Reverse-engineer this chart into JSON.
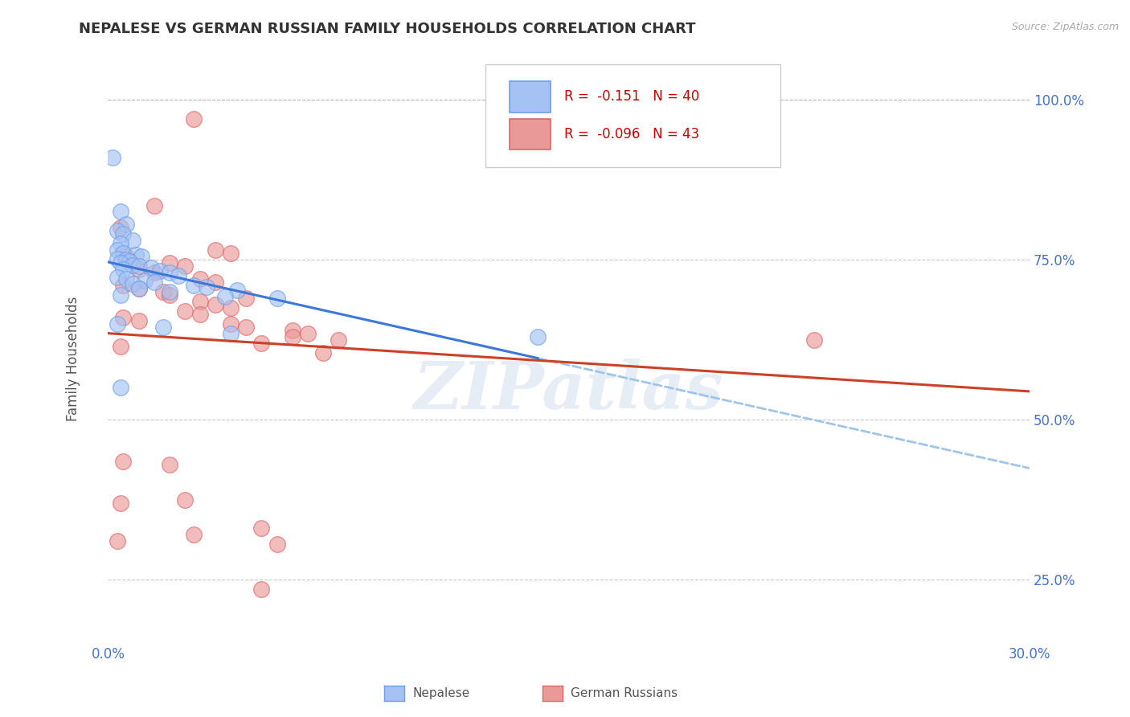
{
  "title": "NEPALESE VS GERMAN RUSSIAN FAMILY HOUSEHOLDS CORRELATION CHART",
  "source_text": "Source: ZipAtlas.com",
  "ylabel": "Family Households",
  "watermark": "ZIPatlas",
  "legend": {
    "blue_r": -0.151,
    "blue_n": 40,
    "pink_r": -0.096,
    "pink_n": 43,
    "blue_label": "Nepalese",
    "pink_label": "German Russians"
  },
  "xlim": [
    0.0,
    30.0
  ],
  "ylim": [
    15.0,
    107.0
  ],
  "yticks": [
    25.0,
    50.0,
    75.0,
    100.0
  ],
  "ytick_labels": [
    "25.0%",
    "50.0%",
    "75.0%",
    "100.0%"
  ],
  "title_color": "#333333",
  "title_fontsize": 13,
  "blue_color": "#a4c2f4",
  "pink_color": "#ea9999",
  "blue_edge_color": "#6d9eeb",
  "pink_edge_color": "#e06666",
  "blue_line_color": "#3c78d8",
  "pink_line_color": "#cc4125",
  "dashed_line_color": "#9fc5e8",
  "axis_label_color": "#4472c4",
  "background_color": "#ffffff",
  "grid_color": "#b0b0b0",
  "blue_dots": [
    [
      0.15,
      91.0
    ],
    [
      0.4,
      82.5
    ],
    [
      0.6,
      80.5
    ],
    [
      0.3,
      79.5
    ],
    [
      0.5,
      79.0
    ],
    [
      0.8,
      78.0
    ],
    [
      0.4,
      77.5
    ],
    [
      0.3,
      76.5
    ],
    [
      0.5,
      76.0
    ],
    [
      0.9,
      75.8
    ],
    [
      1.1,
      75.5
    ],
    [
      0.3,
      75.2
    ],
    [
      0.6,
      75.0
    ],
    [
      0.7,
      74.8
    ],
    [
      0.4,
      74.5
    ],
    [
      0.8,
      74.2
    ],
    [
      1.0,
      74.0
    ],
    [
      1.4,
      73.8
    ],
    [
      0.5,
      73.5
    ],
    [
      1.7,
      73.2
    ],
    [
      2.0,
      73.0
    ],
    [
      2.3,
      72.5
    ],
    [
      0.3,
      72.2
    ],
    [
      0.6,
      72.0
    ],
    [
      1.2,
      71.8
    ],
    [
      1.5,
      71.5
    ],
    [
      0.8,
      71.2
    ],
    [
      2.8,
      71.0
    ],
    [
      3.2,
      70.8
    ],
    [
      1.0,
      70.5
    ],
    [
      4.2,
      70.2
    ],
    [
      2.0,
      70.0
    ],
    [
      0.4,
      69.5
    ],
    [
      3.8,
      69.2
    ],
    [
      5.5,
      69.0
    ],
    [
      0.3,
      65.0
    ],
    [
      1.8,
      64.5
    ],
    [
      4.0,
      63.5
    ],
    [
      14.0,
      63.0
    ],
    [
      0.4,
      55.0
    ]
  ],
  "pink_dots": [
    [
      2.8,
      97.0
    ],
    [
      1.5,
      83.5
    ],
    [
      0.4,
      80.0
    ],
    [
      3.5,
      76.5
    ],
    [
      4.0,
      76.0
    ],
    [
      0.6,
      75.5
    ],
    [
      2.0,
      74.5
    ],
    [
      2.5,
      74.0
    ],
    [
      1.0,
      73.5
    ],
    [
      1.5,
      73.0
    ],
    [
      3.0,
      72.0
    ],
    [
      3.5,
      71.5
    ],
    [
      0.5,
      71.0
    ],
    [
      1.0,
      70.5
    ],
    [
      1.8,
      70.0
    ],
    [
      2.0,
      69.5
    ],
    [
      4.5,
      69.0
    ],
    [
      3.0,
      68.5
    ],
    [
      3.5,
      68.0
    ],
    [
      4.0,
      67.5
    ],
    [
      2.5,
      67.0
    ],
    [
      3.0,
      66.5
    ],
    [
      0.5,
      66.0
    ],
    [
      1.0,
      65.5
    ],
    [
      4.0,
      65.0
    ],
    [
      4.5,
      64.5
    ],
    [
      6.0,
      64.0
    ],
    [
      6.5,
      63.5
    ],
    [
      6.0,
      63.0
    ],
    [
      7.5,
      62.5
    ],
    [
      5.0,
      62.0
    ],
    [
      0.4,
      61.5
    ],
    [
      7.0,
      60.5
    ],
    [
      0.5,
      43.5
    ],
    [
      2.0,
      43.0
    ],
    [
      0.4,
      37.0
    ],
    [
      2.5,
      37.5
    ],
    [
      23.0,
      62.5
    ],
    [
      5.0,
      33.0
    ],
    [
      0.3,
      31.0
    ],
    [
      2.8,
      32.0
    ],
    [
      5.5,
      30.5
    ],
    [
      5.0,
      23.5
    ]
  ]
}
